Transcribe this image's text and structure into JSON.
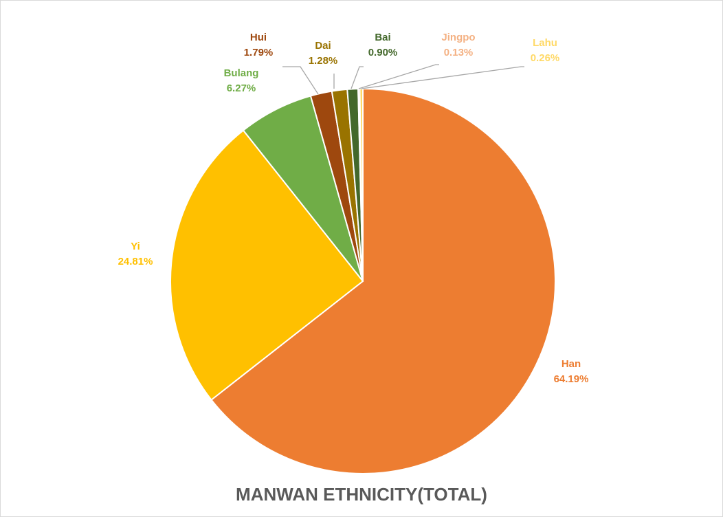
{
  "chart_data": {
    "type": "pie",
    "title": "MANWAN ETHNICITY(TOTAL)",
    "slices": [
      {
        "name": "Han",
        "value": 64.19,
        "label": "64.19%",
        "color": "#ED7D31",
        "label_color": "#ED7D31"
      },
      {
        "name": "Yi",
        "value": 24.81,
        "label": "24.81%",
        "color": "#FFC000",
        "label_color": "#FFC000"
      },
      {
        "name": "Bulang",
        "value": 6.27,
        "label": "6.27%",
        "color": "#70AD47",
        "label_color": "#70AD47"
      },
      {
        "name": "Hui",
        "value": 1.79,
        "label": "1.79%",
        "color": "#9E480E",
        "label_color": "#9E480E"
      },
      {
        "name": "Dai",
        "value": 1.28,
        "label": "1.28%",
        "color": "#997300",
        "label_color": "#997300"
      },
      {
        "name": "Bai",
        "value": 0.9,
        "label": "0.90%",
        "color": "#43682B",
        "label_color": "#43682B"
      },
      {
        "name": "Jingpo",
        "value": 0.13,
        "label": "0.13%",
        "color": "#F4B183",
        "label_color": "#F4B183"
      },
      {
        "name": "Lahu",
        "value": 0.26,
        "label": "0.26%",
        "color": "#FFD966",
        "label_color": "#FFD966"
      }
    ],
    "start_angle": "12 o'clock",
    "direction": "clockwise",
    "legend": "none",
    "data_labels": "outside with leader lines for small slices"
  }
}
